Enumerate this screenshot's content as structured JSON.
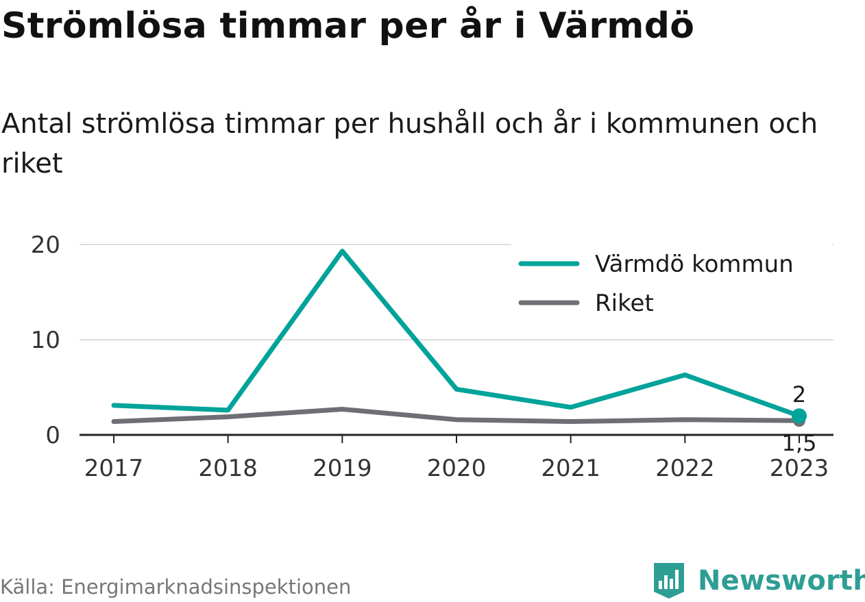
{
  "title": "Strömlösa timmar per år i Värmdö",
  "subtitle": "Antal strömlösa timmar per hushåll och år i kommunen och riket",
  "source": "Källa: Energimarknadsinspektionen",
  "logo": {
    "text": "Newsworthy",
    "icon": "newsworthy-logo-icon"
  },
  "colors": {
    "varmdo": "#00a39a",
    "riket": "#6f6e75",
    "grid": "#dddddd",
    "axis": "#222222"
  },
  "chart_data": {
    "type": "line",
    "x": [
      "2017",
      "2018",
      "2019",
      "2020",
      "2021",
      "2022",
      "2023"
    ],
    "yticks": [
      "0",
      "10",
      "20"
    ],
    "ylim": [
      0,
      20
    ],
    "grid": true,
    "legend_position": "top-right",
    "series": [
      {
        "name": "Värmdö kommun",
        "values": [
          3.1,
          2.6,
          19.3,
          4.8,
          2.9,
          6.3,
          2.0
        ],
        "end_label": "2"
      },
      {
        "name": "Riket",
        "values": [
          1.4,
          1.9,
          2.7,
          1.6,
          1.4,
          1.6,
          1.5
        ],
        "end_label": "1,5"
      }
    ]
  }
}
